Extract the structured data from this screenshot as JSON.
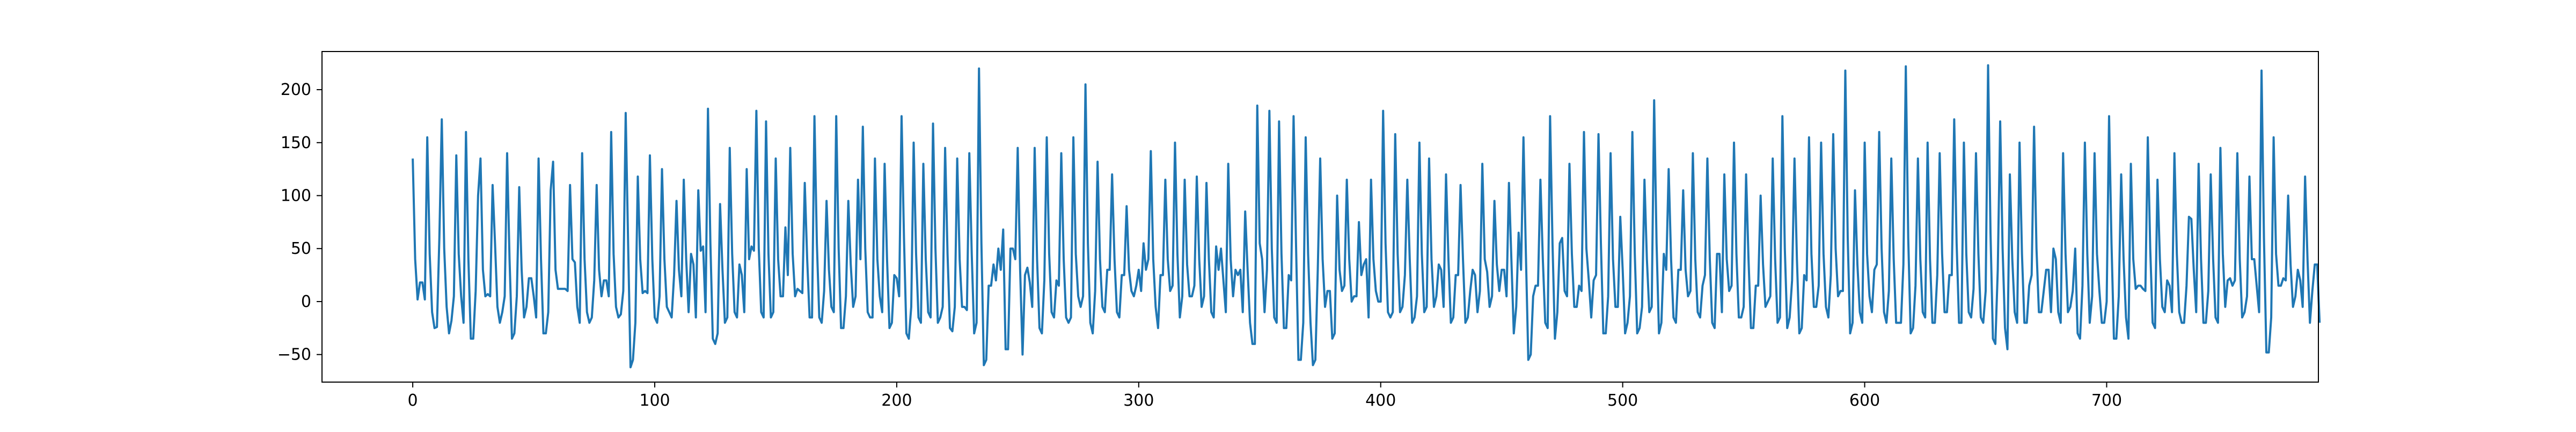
{
  "chart_data": {
    "type": "line",
    "title": "",
    "xlabel": "",
    "ylabel": "",
    "xlim": [
      -37.5,
      787.5
    ],
    "ylim": [
      -76,
      236
    ],
    "x_ticks": [
      0,
      100,
      200,
      300,
      400,
      500,
      600,
      700
    ],
    "y_ticks": [
      -50,
      0,
      50,
      100,
      150,
      200
    ],
    "x_tick_labels": [
      "0",
      "100",
      "200",
      "300",
      "400",
      "500",
      "600",
      "700"
    ],
    "y_tick_labels": [
      "−50",
      "0",
      "50",
      "100",
      "150",
      "200"
    ],
    "grid": false,
    "legend": "none",
    "line_color": "#1f77b4",
    "series": [
      {
        "x_start": 0,
        "x_step": 1,
        "values": [
          135,
          40,
          2,
          18,
          18,
          2,
          155,
          45,
          -10,
          -25,
          -24,
          60,
          172,
          50,
          -5,
          -30,
          -18,
          5,
          138,
          45,
          5,
          -20,
          160,
          40,
          -35,
          -35,
          10,
          100,
          135,
          30,
          5,
          7,
          5,
          110,
          55,
          -5,
          -20,
          -10,
          5,
          140,
          40,
          -35,
          -30,
          5,
          108,
          30,
          -15,
          -5,
          22,
          22,
          5,
          -15,
          135,
          40,
          -30,
          -30,
          -10,
          105,
          132,
          30,
          12,
          12,
          12,
          12,
          10,
          110,
          40,
          37,
          -5,
          -20,
          140,
          40,
          -10,
          -20,
          -15,
          20,
          110,
          30,
          5,
          20,
          20,
          5,
          160,
          45,
          -5,
          -15,
          -12,
          10,
          178,
          55,
          -62,
          -55,
          -20,
          118,
          40,
          8,
          10,
          8,
          138,
          40,
          -15,
          -20,
          5,
          125,
          40,
          -5,
          -10,
          -15,
          25,
          95,
          30,
          5,
          115,
          40,
          -10,
          45,
          35,
          -15,
          105,
          48,
          52,
          -10,
          182,
          55,
          -35,
          -40,
          -30,
          92,
          30,
          -20,
          -15,
          145,
          45,
          -10,
          -15,
          35,
          25,
          -10,
          125,
          40,
          52,
          48,
          180,
          50,
          -10,
          -15,
          170,
          45,
          -15,
          -10,
          135,
          40,
          5,
          5,
          70,
          25,
          145,
          45,
          5,
          12,
          10,
          8,
          112,
          40,
          -15,
          -15,
          175,
          55,
          -15,
          -20,
          10,
          95,
          30,
          -5,
          -10,
          175,
          50,
          -25,
          -25,
          5,
          95,
          35,
          -5,
          5,
          115,
          40,
          165,
          50,
          -10,
          -15,
          -15,
          135,
          40,
          5,
          -10,
          130,
          40,
          -25,
          -20,
          25,
          22,
          5,
          175,
          60,
          -30,
          -35,
          -5,
          150,
          45,
          -15,
          -20,
          130,
          40,
          -10,
          -15,
          168,
          50,
          -20,
          -15,
          -5,
          145,
          45,
          -25,
          -28,
          -5,
          135,
          40,
          -5,
          -5,
          -8,
          140,
          45,
          -30,
          -20,
          220,
          55,
          -60,
          -55,
          15,
          15,
          35,
          20,
          50,
          30,
          68,
          -45,
          -45,
          50,
          50,
          40,
          145,
          30,
          -50,
          25,
          32,
          18,
          -5,
          145,
          40,
          -25,
          -30,
          20,
          155,
          45,
          -10,
          -15,
          20,
          15,
          140,
          40,
          -15,
          -20,
          -15,
          155,
          45,
          5,
          -5,
          5,
          205,
          55,
          -20,
          -30,
          10,
          132,
          40,
          -5,
          -10,
          30,
          30,
          120,
          40,
          -10,
          -15,
          25,
          25,
          90,
          30,
          10,
          5,
          15,
          30,
          10,
          55,
          30,
          40,
          142,
          40,
          -5,
          -25,
          25,
          25,
          115,
          40,
          10,
          15,
          150,
          45,
          -15,
          5,
          115,
          35,
          5,
          5,
          15,
          118,
          40,
          -5,
          5,
          112,
          40,
          -10,
          -15,
          52,
          30,
          50,
          20,
          -10,
          130,
          40,
          5,
          30,
          25,
          30,
          -10,
          85,
          30,
          -20,
          -40,
          -40,
          185,
          55,
          40,
          -10,
          30,
          180,
          50,
          -15,
          -20,
          170,
          45,
          -25,
          -25,
          25,
          20,
          175,
          55,
          -55,
          -55,
          -20,
          155,
          45,
          -20,
          -60,
          -55,
          30,
          135,
          40,
          -5,
          10,
          10,
          -35,
          -30,
          100,
          30,
          10,
          15,
          115,
          40,
          0,
          5,
          5,
          75,
          25,
          35,
          40,
          -15,
          115,
          40,
          10,
          0,
          0,
          180,
          55,
          -10,
          -15,
          -10,
          158,
          45,
          -10,
          -5,
          25,
          115,
          40,
          -20,
          -15,
          5,
          150,
          45,
          -10,
          -5,
          135,
          40,
          -5,
          5,
          35,
          30,
          -5,
          120,
          40,
          -20,
          -15,
          25,
          25,
          110,
          40,
          -20,
          -15,
          10,
          30,
          25,
          -10,
          10,
          130,
          40,
          28,
          -5,
          5,
          95,
          35,
          10,
          30,
          30,
          5,
          112,
          40,
          -30,
          -5,
          65,
          30,
          155,
          45,
          -55,
          -50,
          5,
          15,
          15,
          115,
          40,
          -20,
          -25,
          175,
          55,
          -35,
          -10,
          55,
          60,
          10,
          5,
          130,
          45,
          -5,
          -5,
          15,
          10,
          160,
          50,
          20,
          -15,
          20,
          25,
          158,
          55,
          -30,
          -30,
          5,
          140,
          40,
          -5,
          -5,
          80,
          30,
          -30,
          -20,
          5,
          160,
          45,
          -30,
          -25,
          -5,
          115,
          40,
          -10,
          -5,
          190,
          55,
          -30,
          -20,
          45,
          30,
          125,
          40,
          -15,
          -20,
          30,
          30,
          105,
          30,
          5,
          10,
          140,
          40,
          -10,
          -15,
          15,
          25,
          135,
          40,
          -20,
          -25,
          45,
          45,
          -10,
          120,
          40,
          10,
          15,
          150,
          45,
          -15,
          -15,
          -5,
          120,
          40,
          -25,
          -25,
          15,
          15,
          100,
          35,
          -5,
          0,
          5,
          135,
          40,
          -20,
          -15,
          175,
          50,
          -25,
          -15,
          20,
          135,
          40,
          -30,
          -25,
          25,
          20,
          155,
          45,
          -5,
          -5,
          15,
          150,
          45,
          -5,
          -15,
          25,
          158,
          50,
          5,
          10,
          10,
          218,
          60,
          -30,
          -20,
          105,
          35,
          -10,
          -20,
          150,
          45,
          5,
          -10,
          30,
          35,
          160,
          50,
          -10,
          -20,
          10,
          135,
          40,
          -20,
          -20,
          -20,
          35,
          222,
          60,
          -30,
          -25,
          15,
          135,
          40,
          -10,
          -15,
          150,
          40,
          -20,
          -20,
          25,
          140,
          45,
          -10,
          -10,
          25,
          25,
          172,
          55,
          -20,
          -20,
          150,
          45,
          -10,
          -15,
          12,
          140,
          45,
          -15,
          -20,
          10,
          223,
          65,
          -35,
          -40,
          30,
          170,
          50,
          -25,
          -45,
          120,
          40,
          -10,
          -20,
          150,
          45,
          -20,
          -20,
          15,
          25,
          165,
          50,
          -10,
          -10,
          10,
          30,
          30,
          -10,
          50,
          40,
          -10,
          -20,
          140,
          45,
          -10,
          -5,
          10,
          50,
          -30,
          -35,
          15,
          150,
          45,
          -20,
          5,
          140,
          45,
          10,
          -20,
          -20,
          0,
          175,
          55,
          -35,
          -35,
          5,
          120,
          40,
          -15,
          -35,
          130,
          40,
          12,
          15,
          15,
          12,
          10,
          155,
          50,
          -20,
          -25,
          115,
          40,
          -5,
          -10,
          20,
          15,
          -10,
          140,
          45,
          -10,
          -20,
          -20,
          15,
          80,
          78,
          30,
          -10,
          130,
          40,
          -20,
          -20,
          10,
          120,
          40,
          -15,
          -20,
          145,
          45,
          -5,
          20,
          22,
          15,
          20,
          140,
          40,
          -15,
          -10,
          5,
          118,
          40,
          40,
          15,
          -10,
          218,
          60,
          -48,
          -48,
          -15,
          155,
          45,
          15,
          15,
          22,
          20,
          100,
          35,
          -5,
          5,
          30,
          20,
          -5,
          118,
          40,
          -20,
          10,
          35,
          35,
          -20
        ]
      }
    ]
  }
}
